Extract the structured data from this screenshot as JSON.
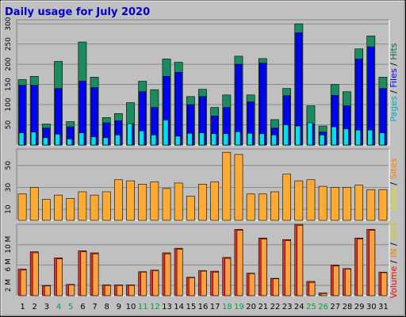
{
  "chart_data": {
    "type": "bar",
    "title": "Daily usage for July 2020",
    "categories": [
      "1",
      "2",
      "3",
      "4",
      "5",
      "6",
      "7",
      "8",
      "9",
      "10",
      "11",
      "12",
      "13",
      "14",
      "15",
      "16",
      "17",
      "18",
      "19",
      "20",
      "21",
      "22",
      "23",
      "24",
      "25",
      "26",
      "27",
      "28",
      "29",
      "30",
      "31"
    ],
    "weekend_days": [
      "4",
      "5",
      "11",
      "12",
      "18",
      "19",
      "25",
      "26"
    ],
    "panels": [
      {
        "name": "pages-files-hits",
        "ylim": [
          0,
          310
        ],
        "yticks": [
          50,
          100,
          150,
          200,
          250,
          300
        ],
        "legend": [
          {
            "text": "Pages",
            "color": "#00b0c0"
          },
          {
            "text": " / ",
            "color": "#000000"
          },
          {
            "text": "Files",
            "color": "#0000ff"
          },
          {
            "text": " / ",
            "color": "#000000"
          },
          {
            "text": "Hits",
            "color": "#007030"
          }
        ],
        "series": [
          {
            "name": "Hits",
            "color": "#1a8c60",
            "values": [
              162,
              170,
              52,
              207,
              58,
              255,
              168,
              68,
              78,
              105,
              158,
              137,
              213,
              205,
              120,
              138,
              93,
              124,
              220,
              124,
              214,
              63,
              140,
              300,
              97,
              47,
              150,
              132,
              238,
              270,
              168
            ]
          },
          {
            "name": "Files",
            "color": "#0000ff",
            "values": [
              148,
              148,
              42,
              140,
              45,
              158,
              142,
              55,
              60,
              52,
              132,
              93,
              170,
              180,
              100,
              120,
              72,
              93,
              200,
              107,
              203,
              42,
              122,
              278,
              52,
              32,
              123,
              97,
              213,
              243,
              140
            ]
          },
          {
            "name": "Pages",
            "color": "#00e0f0",
            "values": [
              30,
              32,
              18,
              27,
              15,
              30,
              20,
              18,
              25,
              53,
              35,
              25,
              62,
              22,
              29,
              30,
              28,
              28,
              33,
              29,
              28,
              25,
              50,
              47,
              55,
              25,
              45,
              40,
              37,
              37,
              30
            ]
          }
        ]
      },
      {
        "name": "visits-sites",
        "ylim": [
          0,
          65
        ],
        "yticks": [
          10,
          30,
          50
        ],
        "legend": [
          {
            "text": "Visits",
            "color": "#e0e000"
          },
          {
            "text": " / ",
            "color": "#000000"
          },
          {
            "text": "Sites",
            "color": "#ff8000"
          }
        ],
        "series": [
          {
            "name": "Visits",
            "color": "#ffaa33",
            "values": [
              24,
              30,
              19,
              23,
              20,
              26,
              23,
              26,
              37,
              36,
              33,
              35,
              29,
              34,
              22,
              33,
              35,
              62,
              60,
              24,
              24,
              26,
              42,
              36,
              37,
              31,
              30,
              30,
              32,
              28,
              28
            ]
          }
        ]
      },
      {
        "name": "volume",
        "ylim": [
          0,
          14
        ],
        "yticks": [
          2,
          6,
          10
        ],
        "ytick_labels": [
          "2 M",
          "6 M",
          "10 M"
        ],
        "legend": [
          {
            "text": "Volume",
            "color": "#ff0000"
          },
          {
            "text": " / ",
            "color": "#000000"
          },
          {
            "text": "IN",
            "color": "#ff8000"
          },
          {
            "text": " / ",
            "color": "#000000"
          },
          {
            "text": "OUT",
            "color": "#d0d000"
          }
        ],
        "series": [
          {
            "name": "Volume",
            "color": "#e83020",
            "values": [
              5.2,
              8.6,
              2.0,
              7.4,
              2.2,
              8.8,
              8.4,
              2.1,
              2.1,
              2.1,
              4.7,
              5.0,
              8.4,
              9.3,
              3.6,
              4.9,
              4.8,
              7.5,
              13.0,
              4.4,
              11.3,
              3.4,
              11.0,
              14.0,
              2.8,
              0.5,
              6.0,
              5.3,
              11.3,
              13.0,
              4.6
            ]
          },
          {
            "name": "IN",
            "color": "#ffa040",
            "values": [
              5.0,
              8.4,
              1.9,
              7.2,
              2.1,
              8.6,
              8.2,
              2.0,
              2.0,
              2.0,
              4.6,
              4.9,
              8.2,
              9.1,
              3.5,
              4.8,
              4.6,
              7.3,
              12.8,
              4.3,
              11.1,
              3.3,
              10.8,
              13.8,
              2.6,
              0.4,
              5.8,
              5.2,
              11.1,
              12.8,
              4.5
            ]
          }
        ]
      }
    ]
  }
}
